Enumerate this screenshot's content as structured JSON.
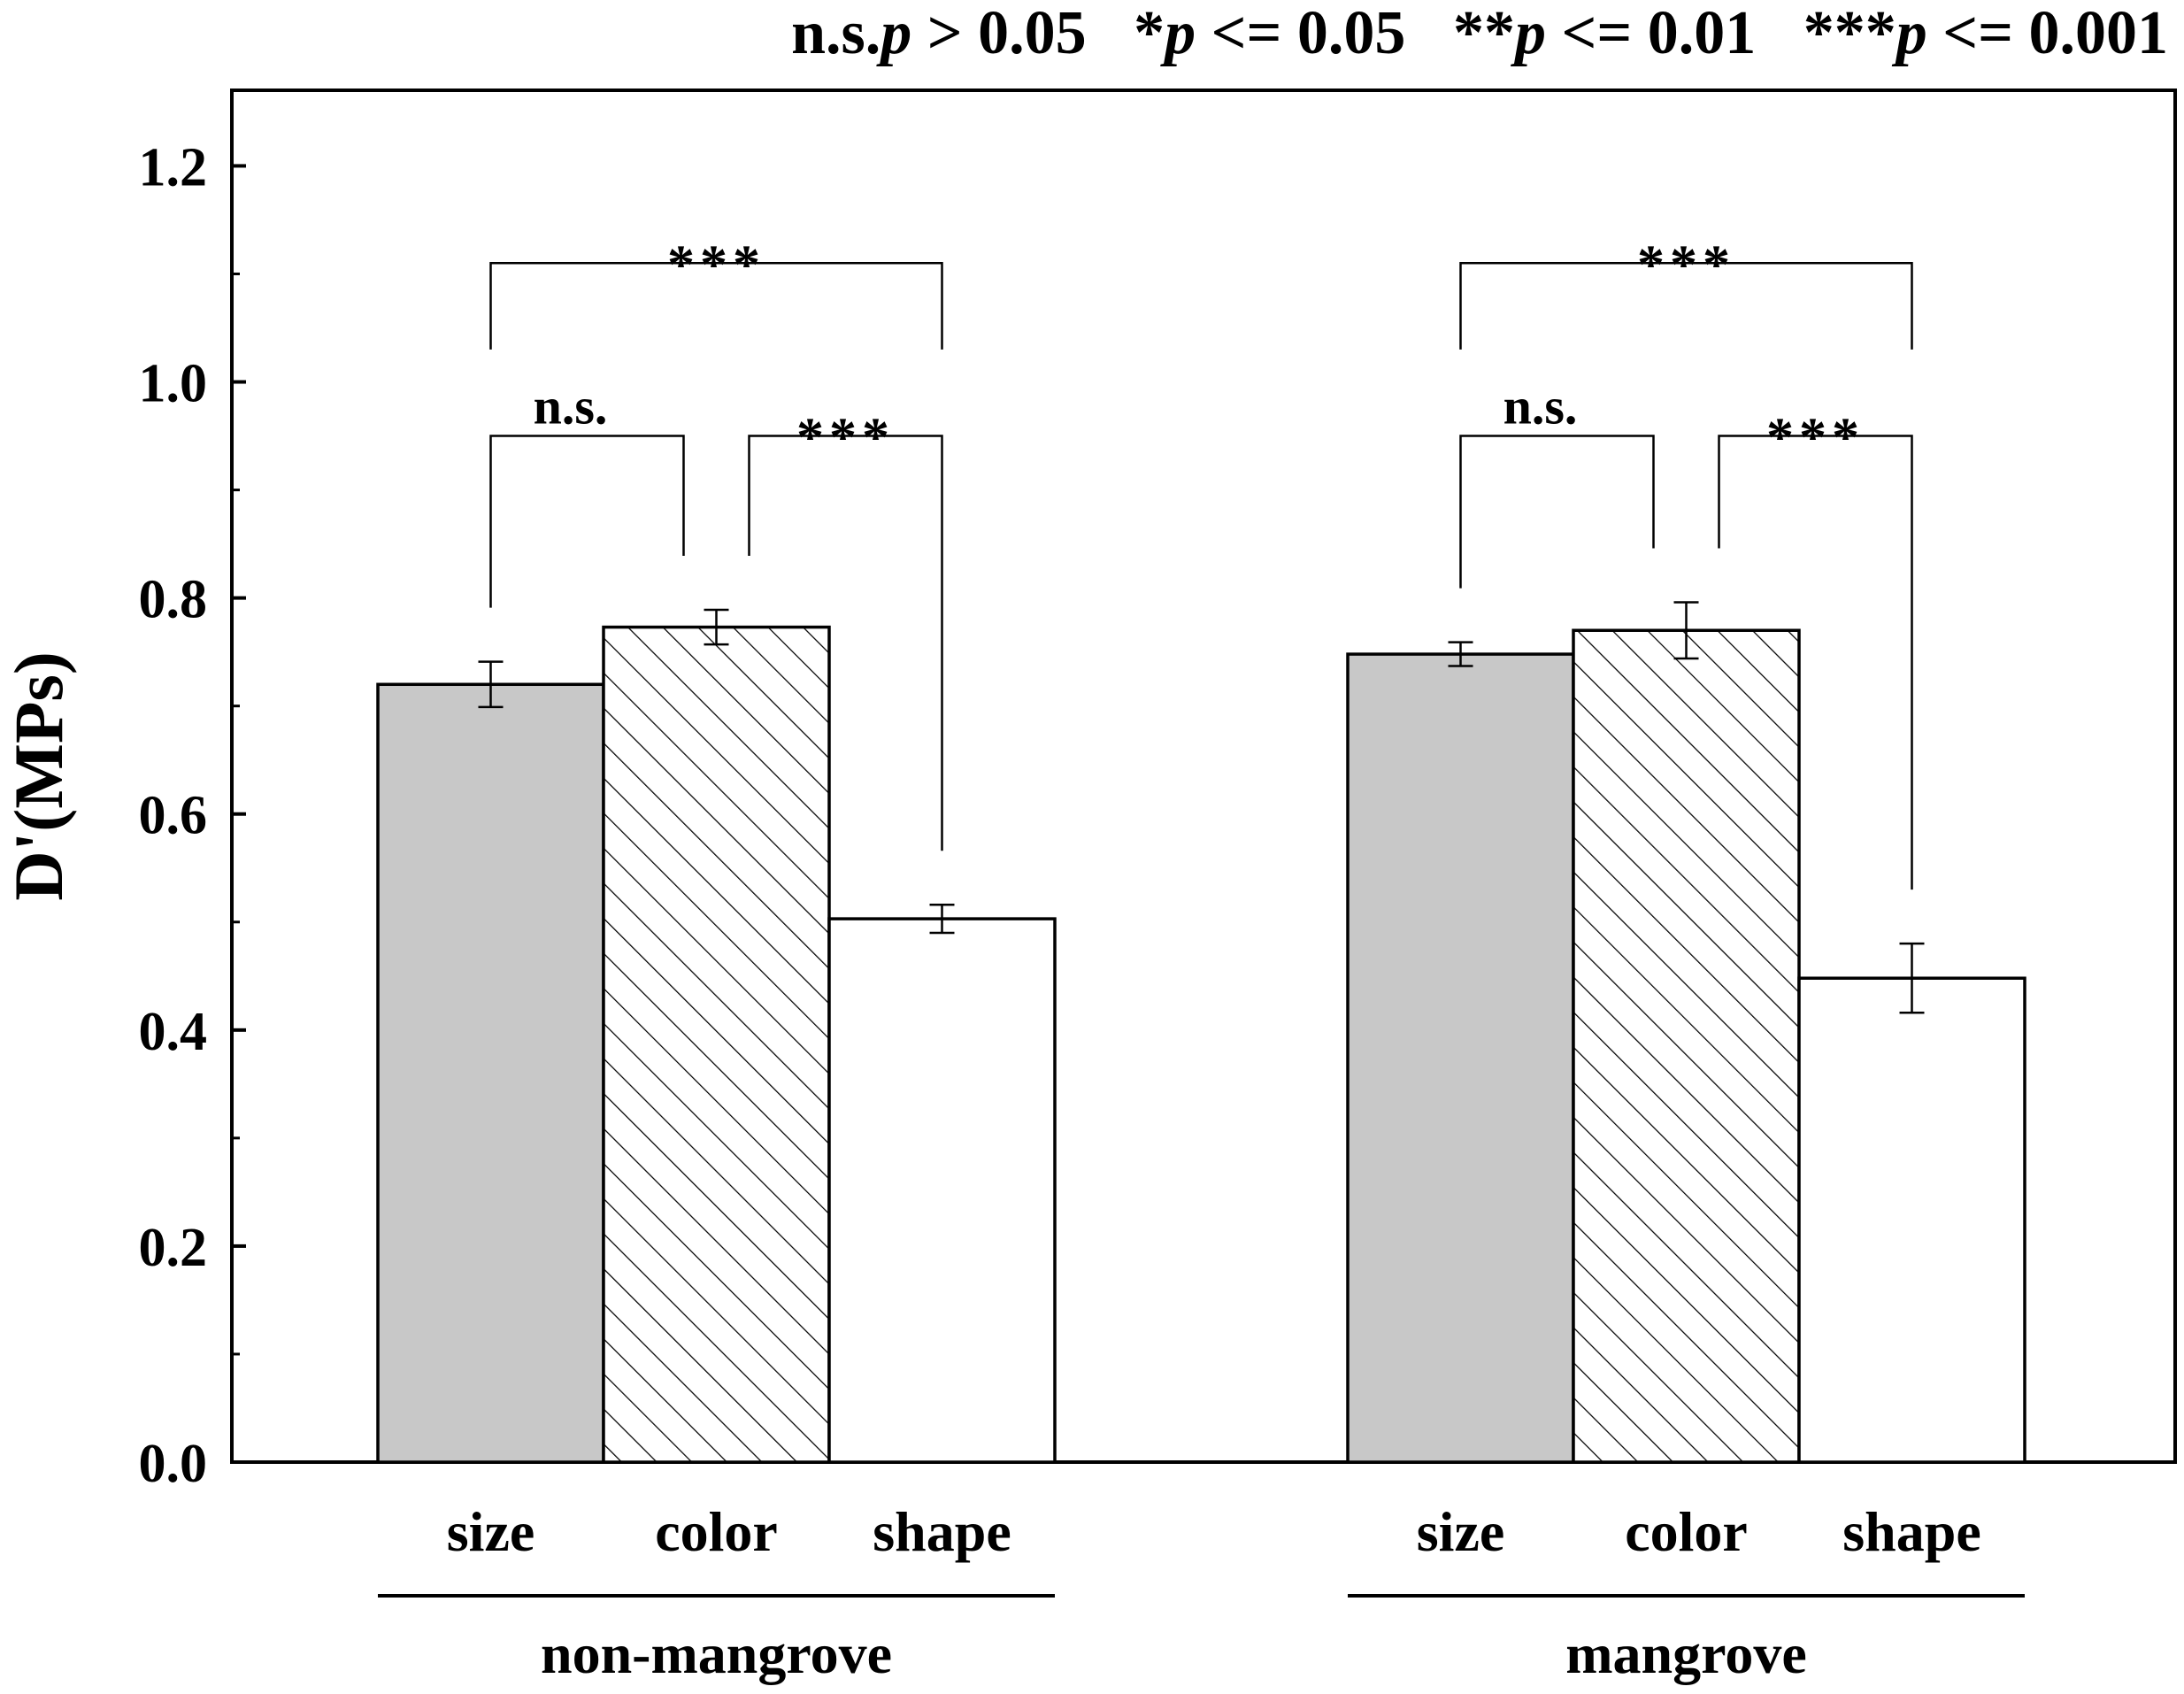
{
  "legend_text": {
    "ns_prefix": "n.s.",
    "p": "p",
    "ns_rel": " > 0.05",
    "one_star": "*",
    "one_rel": " <= 0.05",
    "two_star": "**",
    "two_rel": " <= 0.01",
    "three_star": "***",
    "three_rel": " <= 0.001"
  },
  "chart_data": {
    "type": "bar",
    "ylabel": "D'(MPs)",
    "ylim": [
      0,
      1.27
    ],
    "yticks": [
      "0.0",
      "0.2",
      "0.4",
      "0.6",
      "0.8",
      "1.0",
      "1.2"
    ],
    "groups": [
      "non-mangrove",
      "mangrove"
    ],
    "categories": [
      "size",
      "color",
      "shape"
    ],
    "series": [
      {
        "group": "non-mangrove",
        "values": [
          0.72,
          0.773,
          0.503
        ],
        "errors": [
          0.021,
          0.016,
          0.013
        ]
      },
      {
        "group": "mangrove",
        "values": [
          0.748,
          0.77,
          0.448
        ],
        "errors": [
          0.011,
          0.026,
          0.032
        ]
      }
    ],
    "bar_styles": [
      "gray",
      "hatched",
      "white"
    ],
    "colors": {
      "gray": "#c8c8c8",
      "white": "#ffffff",
      "line": "#000000"
    },
    "significance": [
      {
        "group": "non-mangrove",
        "from": "size",
        "to": "color",
        "label": "n.s."
      },
      {
        "group": "non-mangrove",
        "from": "color",
        "to": "shape",
        "label": "***"
      },
      {
        "group": "non-mangrove",
        "from": "size",
        "to": "shape",
        "label": "***"
      },
      {
        "group": "mangrove",
        "from": "size",
        "to": "color",
        "label": "n.s."
      },
      {
        "group": "mangrove",
        "from": "color",
        "to": "shape",
        "label": "***"
      },
      {
        "group": "mangrove",
        "from": "size",
        "to": "shape",
        "label": "***"
      }
    ]
  }
}
